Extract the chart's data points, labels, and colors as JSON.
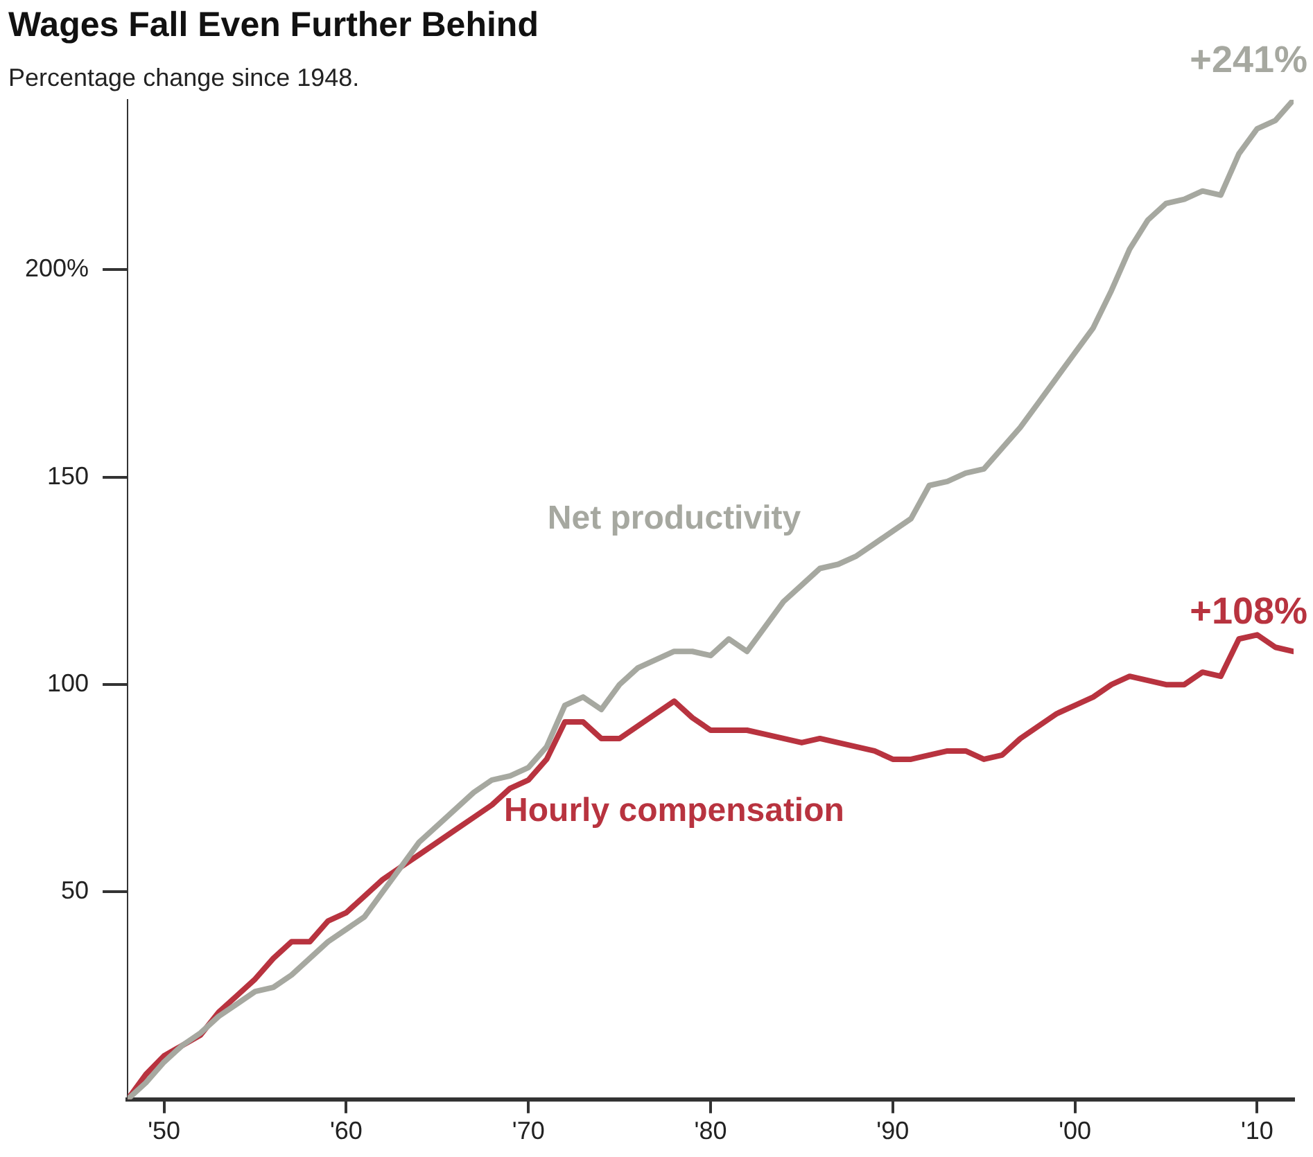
{
  "chart_data": {
    "type": "line",
    "title": "Wages Fall Even Further Behind",
    "subtitle": "Percentage change since 1948.",
    "x": [
      1948,
      1949,
      1950,
      1951,
      1952,
      1953,
      1954,
      1955,
      1956,
      1957,
      1958,
      1959,
      1960,
      1961,
      1962,
      1963,
      1964,
      1965,
      1966,
      1967,
      1968,
      1969,
      1970,
      1971,
      1972,
      1973,
      1974,
      1975,
      1976,
      1977,
      1978,
      1979,
      1980,
      1981,
      1982,
      1983,
      1984,
      1985,
      1986,
      1987,
      1988,
      1989,
      1990,
      1991,
      1992,
      1993,
      1994,
      1995,
      1996,
      1997,
      1998,
      1999,
      2000,
      2001,
      2002,
      2003,
      2004,
      2005,
      2006,
      2007,
      2008,
      2009,
      2010,
      2011,
      2012
    ],
    "series": [
      {
        "name": "Net productivity",
        "color": "#a6a8a0",
        "values": [
          0,
          4,
          9,
          13,
          16,
          20,
          23,
          26,
          27,
          30,
          34,
          38,
          41,
          44,
          50,
          56,
          62,
          66,
          70,
          74,
          77,
          78,
          80,
          85,
          95,
          97,
          94,
          100,
          104,
          106,
          108,
          108,
          107,
          111,
          108,
          114,
          120,
          124,
          128,
          129,
          131,
          134,
          137,
          140,
          148,
          149,
          151,
          152,
          157,
          162,
          168,
          174,
          180,
          186,
          195,
          205,
          212,
          216,
          217,
          219,
          218,
          228,
          234,
          236,
          241
        ]
      },
      {
        "name": "Hourly compensation",
        "color": "#b8333f",
        "values": [
          0,
          6,
          10.5,
          13,
          15.5,
          21,
          25,
          29,
          34,
          38,
          38,
          43,
          45,
          49,
          53,
          56,
          59,
          62,
          65,
          68,
          71,
          75,
          77,
          82,
          91,
          91,
          87,
          87,
          90,
          93,
          96,
          92,
          89,
          89,
          89,
          88,
          87,
          86,
          87,
          86,
          85,
          84,
          82,
          82,
          83,
          84,
          84,
          82,
          83,
          87,
          90,
          93,
          95,
          97,
          100,
          102,
          101,
          100,
          100,
          103,
          102,
          111,
          112,
          109,
          108
        ]
      }
    ],
    "xlim": [
      1948,
      2012
    ],
    "xticks": [
      {
        "value": 1950,
        "label": "'50"
      },
      {
        "value": 1960,
        "label": "'60"
      },
      {
        "value": 1970,
        "label": "'70"
      },
      {
        "value": 1980,
        "label": "'80"
      },
      {
        "value": 1990,
        "label": "'90"
      },
      {
        "value": 2000,
        "label": "'00"
      },
      {
        "value": 2010,
        "label": "'10"
      }
    ],
    "ylim": [
      0,
      241
    ],
    "yticks": [
      50,
      100,
      150,
      {
        "value": 200,
        "label": "200%"
      }
    ],
    "annotations": [
      {
        "text": "+241%",
        "x": 2012,
        "y": 241
      },
      {
        "text": "+108%",
        "x": 2012,
        "y": 108
      }
    ],
    "grid": false,
    "legend": false,
    "marker": "none",
    "line_style": "solid"
  }
}
